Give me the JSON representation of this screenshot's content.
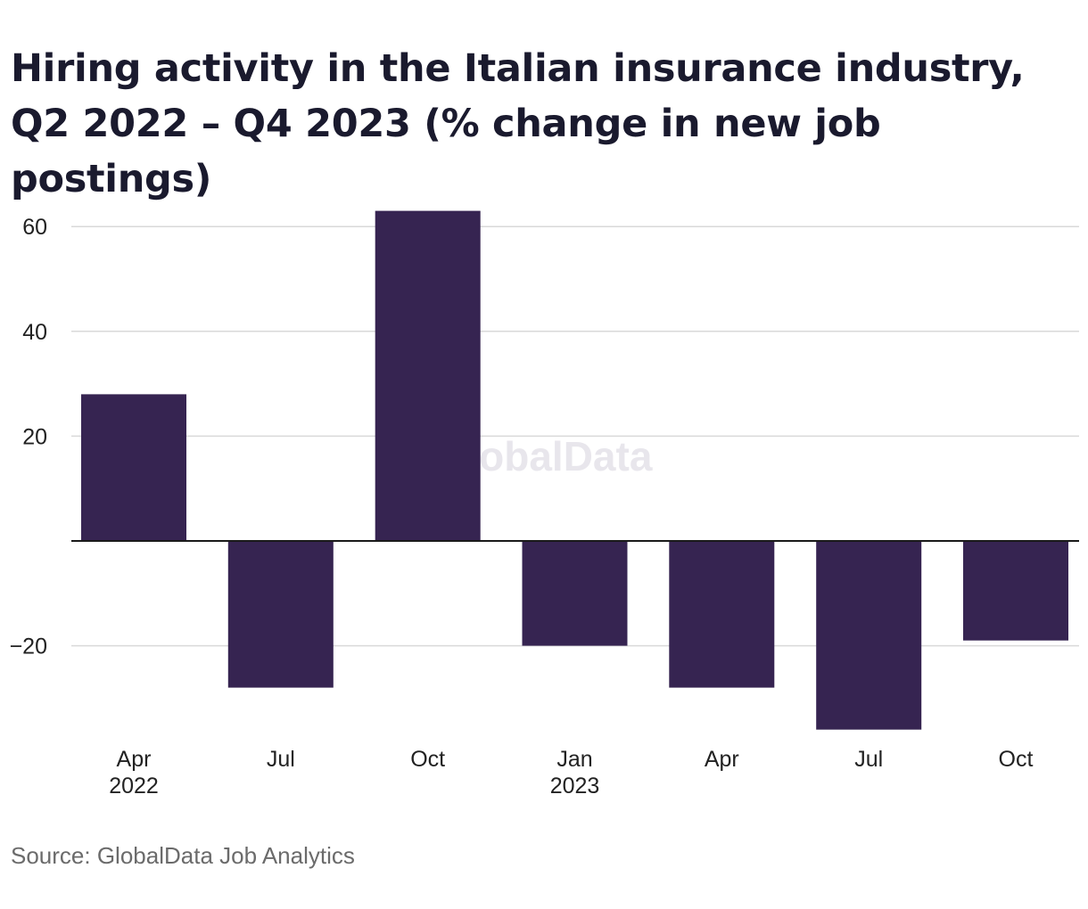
{
  "chart_data": {
    "type": "bar",
    "title": "Hiring activity in the Italian insurance industry, Q2 2022 – Q4 2023 (% change in new job postings)",
    "categories": [
      "Apr 2022",
      "Jul",
      "Oct",
      "Jan 2023",
      "Apr",
      "Jul",
      "Oct"
    ],
    "category_labels": [
      [
        "Apr",
        "2022"
      ],
      [
        "Jul"
      ],
      [
        "Oct"
      ],
      [
        "Jan",
        "2023"
      ],
      [
        "Apr"
      ],
      [
        "Jul"
      ],
      [
        "Oct"
      ]
    ],
    "values": [
      28,
      -28,
      63,
      -20,
      -28,
      -36,
      -19
    ],
    "xlabel": "",
    "ylabel": "",
    "ylim": [
      -38,
      66
    ],
    "yticks": [
      60,
      40,
      20,
      -20
    ],
    "ytick_labels": [
      "60",
      "40",
      "20",
      "−20"
    ],
    "grid": true,
    "bar_color": "#362451",
    "watermark": "GlobalData",
    "source": "Source: GlobalData Job Analytics"
  }
}
